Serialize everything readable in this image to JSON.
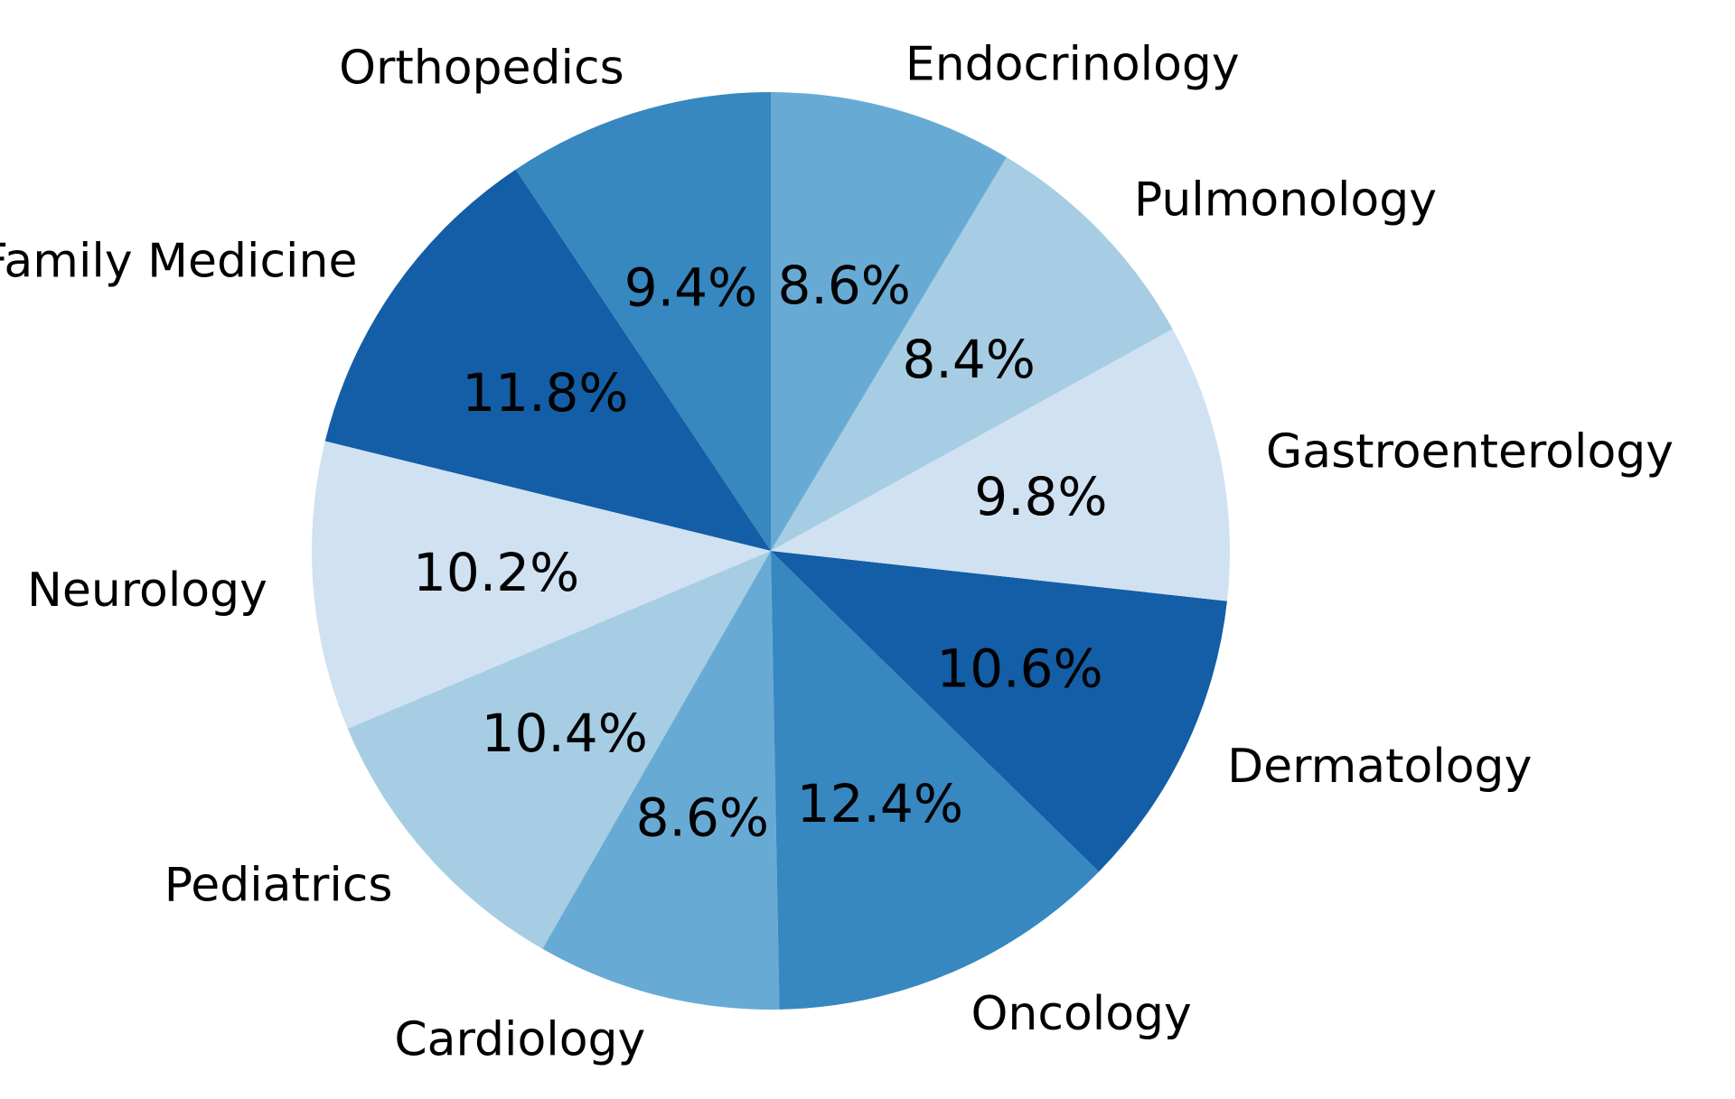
{
  "chart_data": {
    "type": "pie",
    "title": "",
    "start_angle_deg": 90,
    "direction": "counterclockwise",
    "slices": [
      {
        "label": "Orthopedics",
        "value": 9.4,
        "pct_label": "9.4%",
        "color": "#3787c0"
      },
      {
        "label": "Family Medicine",
        "value": 11.8,
        "pct_label": "11.8%",
        "color": "#135ea6"
      },
      {
        "label": "Neurology",
        "value": 10.2,
        "pct_label": "10.2%",
        "color": "#d0e1f2"
      },
      {
        "label": "Pediatrics",
        "value": 10.4,
        "pct_label": "10.4%",
        "color": "#a6cde3"
      },
      {
        "label": "Cardiology",
        "value": 8.6,
        "pct_label": "8.6%",
        "color": "#67abd5"
      },
      {
        "label": "Oncology",
        "value": 12.4,
        "pct_label": "12.4%",
        "color": "#3787c0"
      },
      {
        "label": "Dermatology",
        "value": 10.6,
        "pct_label": "10.6%",
        "color": "#135ea6"
      },
      {
        "label": "Gastroenterology",
        "value": 9.8,
        "pct_label": "9.8%",
        "color": "#d0e1f2"
      },
      {
        "label": "Pulmonology",
        "value": 8.4,
        "pct_label": "8.4%",
        "color": "#a6cde3"
      },
      {
        "label": "Endocrinology",
        "value": 8.6,
        "pct_label": "8.6%",
        "color": "#67abd5"
      }
    ]
  }
}
